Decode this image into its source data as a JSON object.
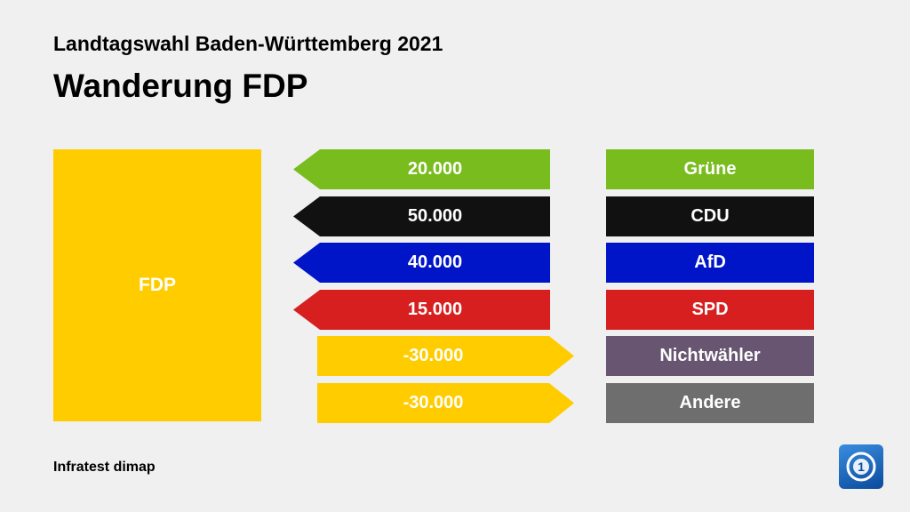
{
  "header": {
    "subtitle": "Landtagswahl Baden-Württemberg 2021",
    "title": "Wanderung FDP"
  },
  "source": "Infratest dimap",
  "logo": "ard-tagesschau-logo",
  "chart_data": {
    "type": "flow",
    "party": {
      "name": "FDP",
      "color": "#ffcc00"
    },
    "flows": [
      {
        "value_label": "20.000",
        "value": 20000,
        "partner": "Grüne",
        "color": "#78bc1e",
        "partner_color": "#78bc1e",
        "direction": "in"
      },
      {
        "value_label": "50.000",
        "value": 50000,
        "partner": "CDU",
        "color": "#111111",
        "partner_color": "#111111",
        "direction": "in"
      },
      {
        "value_label": "40.000",
        "value": 40000,
        "partner": "AfD",
        "color": "#0014c8",
        "partner_color": "#0014c8",
        "direction": "in"
      },
      {
        "value_label": "15.000",
        "value": 15000,
        "partner": "SPD",
        "color": "#d71f1f",
        "partner_color": "#d71f1f",
        "direction": "in"
      },
      {
        "value_label": "-30.000",
        "value": -30000,
        "partner": "Nichtwähler",
        "color": "#ffcc00",
        "partner_color": "#675572",
        "direction": "out"
      },
      {
        "value_label": "-30.000",
        "value": -30000,
        "partner": "Andere",
        "color": "#ffcc00",
        "partner_color": "#6e6e6e",
        "direction": "out"
      }
    ]
  }
}
